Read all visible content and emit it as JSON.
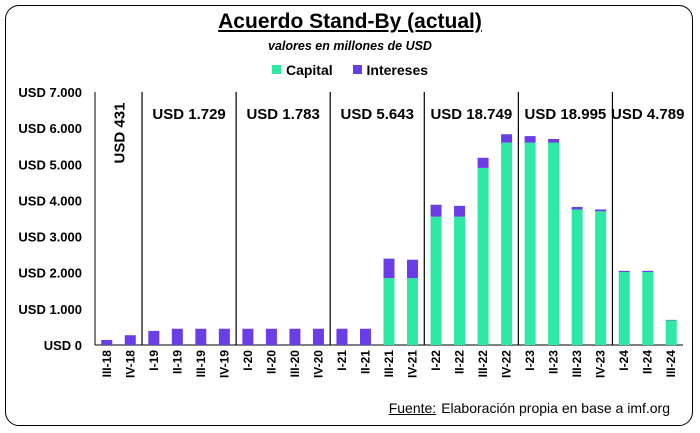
{
  "chart_data": {
    "type": "bar",
    "stacked": true,
    "title": "Acuerdo Stand-By (actual)",
    "subtitle": "valores en millones de USD",
    "xlabel": "",
    "ylabel": "",
    "ylim": [
      0,
      7000
    ],
    "yticks": [
      {
        "value": 0,
        "label": "USD 0"
      },
      {
        "value": 1000,
        "label": "USD 1.000"
      },
      {
        "value": 2000,
        "label": "USD 2.000"
      },
      {
        "value": 3000,
        "label": "USD 3.000"
      },
      {
        "value": 4000,
        "label": "USD 4.000"
      },
      {
        "value": 5000,
        "label": "USD 5.000"
      },
      {
        "value": 6000,
        "label": "USD 6.000"
      },
      {
        "value": 7000,
        "label": "USD 7.000"
      }
    ],
    "legend_position": "top-center",
    "grid": false,
    "categories": [
      "III-18",
      "IV-18",
      "I-19",
      "II-19",
      "III-19",
      "IV-19",
      "I-20",
      "II-20",
      "III-20",
      "IV-20",
      "I-21",
      "II-21",
      "III-21",
      "IV-21",
      "I-22",
      "II-22",
      "III-22",
      "IV-22",
      "I-23",
      "II-23",
      "III-23",
      "IV-23",
      "I-24",
      "II-24",
      "III-24"
    ],
    "series": [
      {
        "name": "Capital",
        "color": "#2ee8a6",
        "values": [
          0,
          0,
          0,
          0,
          0,
          0,
          0,
          0,
          0,
          0,
          0,
          0,
          1850,
          1850,
          3550,
          3550,
          4900,
          5600,
          5600,
          5600,
          3750,
          3700,
          2020,
          2020,
          680
        ]
      },
      {
        "name": "Intereses",
        "color": "#6a3ee6",
        "values": [
          140,
          270,
          390,
          450,
          450,
          450,
          450,
          450,
          450,
          450,
          450,
          450,
          540,
          510,
          330,
          300,
          280,
          230,
          180,
          100,
          70,
          50,
          30,
          30,
          15
        ]
      }
    ],
    "group_separators_after": [
      1,
      5,
      9,
      13,
      17,
      21
    ],
    "group_annotations": [
      {
        "label": "USD 431",
        "start": 0,
        "end": 1,
        "vertical": true
      },
      {
        "label": "USD 1.729",
        "start": 2,
        "end": 5
      },
      {
        "label": "USD 1.783",
        "start": 6,
        "end": 9
      },
      {
        "label": "USD 5.643",
        "start": 10,
        "end": 13
      },
      {
        "label": "USD 18.749",
        "start": 14,
        "end": 17
      },
      {
        "label": "USD 18.995",
        "start": 18,
        "end": 21
      },
      {
        "label": "USD 4.789",
        "start": 22,
        "end": 24
      }
    ]
  },
  "legend": {
    "capital_label": "Capital",
    "intereses_label": "Intereses"
  },
  "source": {
    "label": "Fuente:",
    "text": "Elaboración propia en base a imf.org"
  }
}
